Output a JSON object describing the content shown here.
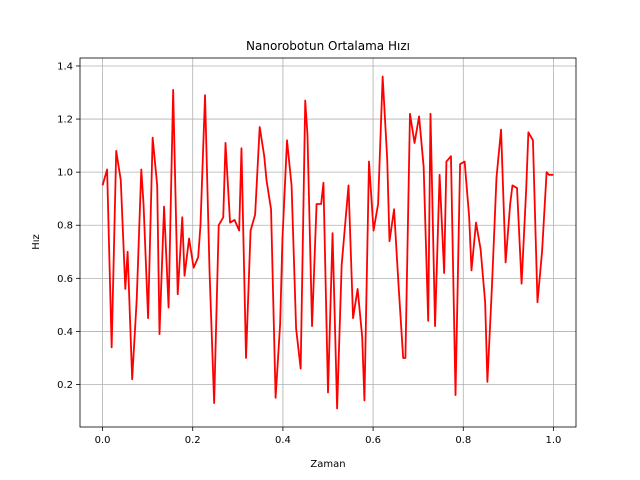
{
  "chart_data": {
    "type": "line",
    "title": "Nanorobotun Ortalama Hızı",
    "xlabel": "Zaman",
    "ylabel": "Hız",
    "xlim": [
      -0.05,
      1.05
    ],
    "ylim": [
      0.04,
      1.43
    ],
    "x_ticks": [
      0.0,
      0.2,
      0.4,
      0.6,
      0.8,
      1.0
    ],
    "x_tick_labels": [
      "0.0",
      "0.2",
      "0.4",
      "0.6",
      "0.8",
      "1.0"
    ],
    "y_ticks": [
      0.2,
      0.4,
      0.6,
      0.8,
      1.0,
      1.2,
      1.4
    ],
    "y_tick_labels": [
      "0.2",
      "0.4",
      "0.6",
      "0.8",
      "1.0",
      "1.2",
      "1.4"
    ],
    "grid": true,
    "series_color": "#ff0000",
    "series": [
      {
        "x": [
          0.0,
          0.0101,
          0.0202,
          0.0303,
          0.0404,
          0.0505,
          0.0556,
          0.0657,
          0.0758,
          0.0859,
          0.0909,
          0.101,
          0.1111,
          0.1212,
          0.1263,
          0.1364,
          0.1465,
          0.1566,
          0.1667,
          0.1768,
          0.1818,
          0.1919,
          0.202,
          0.2121,
          0.2172,
          0.2273,
          0.2374,
          0.2475,
          0.2576,
          0.2677,
          0.2727,
          0.2828,
          0.2929,
          0.303,
          0.3081,
          0.3182,
          0.3283,
          0.3384,
          0.3485,
          0.3586,
          0.3636,
          0.3737,
          0.3838,
          0.3939,
          0.399,
          0.4091,
          0.4192,
          0.4293,
          0.4394,
          0.4495,
          0.4545,
          0.4646,
          0.4747,
          0.4848,
          0.4899,
          0.5,
          0.5101,
          0.5202,
          0.5303,
          0.5404,
          0.5455,
          0.5556,
          0.5657,
          0.5758,
          0.5808,
          0.5909,
          0.601,
          0.6111,
          0.6212,
          0.6313,
          0.6364,
          0.6465,
          0.6566,
          0.6667,
          0.6717,
          0.6818,
          0.6919,
          0.702,
          0.7121,
          0.7222,
          0.7273,
          0.7374,
          0.7475,
          0.7576,
          0.7626,
          0.7727,
          0.7828,
          0.7929,
          0.803,
          0.8131,
          0.8182,
          0.8283,
          0.8384,
          0.8485,
          0.8535,
          0.8636,
          0.8737,
          0.8838,
          0.8939,
          0.904,
          0.9091,
          0.9192,
          0.9293,
          0.9394,
          0.9444,
          0.9545,
          0.9646,
          0.9747,
          0.9848,
          0.9899,
          1.0
        ],
        "y": [
          0.95,
          1.01,
          0.34,
          1.08,
          0.97,
          0.56,
          0.7,
          0.22,
          0.52,
          1.01,
          0.88,
          0.45,
          1.13,
          0.95,
          0.39,
          0.87,
          0.49,
          1.31,
          0.54,
          0.83,
          0.61,
          0.75,
          0.64,
          0.68,
          0.8,
          1.29,
          0.62,
          0.13,
          0.8,
          0.83,
          1.11,
          0.81,
          0.82,
          0.78,
          1.09,
          0.3,
          0.78,
          0.84,
          1.17,
          1.06,
          0.97,
          0.86,
          0.15,
          0.43,
          0.75,
          1.12,
          0.95,
          0.41,
          0.26,
          1.27,
          1.14,
          0.42,
          0.88,
          0.88,
          0.96,
          0.17,
          0.77,
          0.11,
          0.65,
          0.85,
          0.95,
          0.45,
          0.56,
          0.38,
          0.14,
          1.04,
          0.78,
          0.88,
          1.36,
          1.05,
          0.74,
          0.86,
          0.57,
          0.3,
          0.3,
          1.22,
          1.11,
          1.21,
          1.02,
          0.44,
          1.22,
          0.42,
          0.99,
          0.62,
          1.04,
          1.06,
          0.16,
          1.03,
          1.04,
          0.83,
          0.63,
          0.81,
          0.71,
          0.51,
          0.21,
          0.57,
          0.98,
          1.16,
          0.66,
          0.88,
          0.95,
          0.94,
          0.58,
          0.93,
          1.15,
          1.12,
          0.51,
          0.7,
          1.0,
          0.99,
          0.99
        ]
      }
    ]
  }
}
